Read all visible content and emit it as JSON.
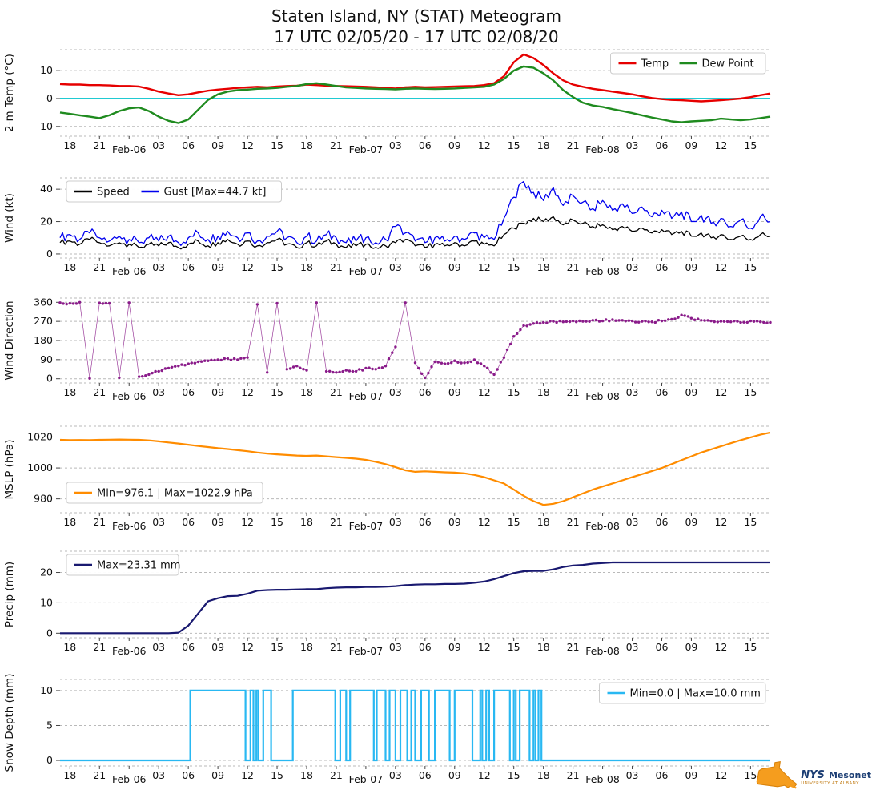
{
  "title_line1": "Staten Island, NY (STAT) Meteogram",
  "title_line2": "17 UTC 02/05/20 - 17 UTC 02/08/20",
  "logo": {
    "nys": "NYS",
    "mesonet": "Mesonet",
    "tagline": "UNIVERSITY AT ALBANY"
  },
  "chart_data": {
    "type": "meteogram-multipanel",
    "x_unit": "hours since 17 UTC 02/05/20",
    "x_range": [
      0,
      72
    ],
    "x_ticks": [
      {
        "h": 1,
        "label": "18"
      },
      {
        "h": 4,
        "label": "21"
      },
      {
        "h": 7,
        "label": "Feb-06",
        "date": true
      },
      {
        "h": 10,
        "label": "03"
      },
      {
        "h": 13,
        "label": "06"
      },
      {
        "h": 16,
        "label": "09"
      },
      {
        "h": 19,
        "label": "12"
      },
      {
        "h": 22,
        "label": "15"
      },
      {
        "h": 25,
        "label": "18"
      },
      {
        "h": 28,
        "label": "21"
      },
      {
        "h": 31,
        "label": "Feb-07",
        "date": true
      },
      {
        "h": 34,
        "label": "03"
      },
      {
        "h": 37,
        "label": "06"
      },
      {
        "h": 40,
        "label": "09"
      },
      {
        "h": 43,
        "label": "12"
      },
      {
        "h": 46,
        "label": "15"
      },
      {
        "h": 49,
        "label": "18"
      },
      {
        "h": 52,
        "label": "21"
      },
      {
        "h": 55,
        "label": "Feb-08",
        "date": true
      },
      {
        "h": 58,
        "label": "03"
      },
      {
        "h": 61,
        "label": "06"
      },
      {
        "h": 64,
        "label": "09"
      },
      {
        "h": 67,
        "label": "12"
      },
      {
        "h": 70,
        "label": "15"
      }
    ],
    "panels": [
      {
        "id": "temp",
        "type": "line",
        "ylabel": "2-m Temp (°C)",
        "ylim": [
          -13.5,
          17.5
        ],
        "yticks": [
          -10,
          0,
          10
        ],
        "zero_line": {
          "value": 0,
          "color": "#00c2cb"
        },
        "legend": {
          "position": "top-right",
          "items": [
            {
              "label": "Temp",
              "color": "#e60000"
            },
            {
              "label": "Dew Point",
              "color": "#1f8b1f"
            }
          ]
        },
        "series": [
          {
            "name": "Temp",
            "color": "#e60000",
            "width": 2.4,
            "values": [
              5.2,
              5.0,
              5.0,
              4.8,
              4.8,
              4.7,
              4.5,
              4.5,
              4.3,
              3.5,
              2.5,
              1.8,
              1.2,
              1.5,
              2.2,
              2.8,
              3.2,
              3.5,
              3.8,
              4.0,
              4.2,
              4.0,
              4.3,
              4.5,
              4.6,
              5.0,
              4.8,
              4.6,
              4.5,
              4.4,
              4.3,
              4.2,
              4.0,
              3.8,
              3.6,
              4.0,
              4.2,
              4.0,
              4.1,
              4.2,
              4.3,
              4.4,
              4.5,
              4.8,
              5.5,
              8.0,
              13.0,
              15.8,
              14.5,
              12.0,
              9.0,
              6.5,
              5.0,
              4.2,
              3.5,
              3.0,
              2.5,
              2.0,
              1.5,
              0.8,
              0.2,
              -0.2,
              -0.5,
              -0.6,
              -0.8,
              -1.0,
              -0.8,
              -0.6,
              -0.3,
              0.0,
              0.5,
              1.2,
              1.8
            ]
          },
          {
            "name": "Dew Point",
            "color": "#1f8b1f",
            "width": 2.4,
            "values": [
              -5.0,
              -5.5,
              -6.0,
              -6.5,
              -7.0,
              -6.0,
              -4.5,
              -3.5,
              -3.2,
              -4.5,
              -6.5,
              -8.0,
              -8.8,
              -7.5,
              -4.0,
              -0.5,
              1.5,
              2.5,
              3.0,
              3.2,
              3.5,
              3.6,
              3.8,
              4.2,
              4.5,
              5.2,
              5.5,
              5.0,
              4.5,
              4.0,
              3.8,
              3.6,
              3.5,
              3.4,
              3.3,
              3.5,
              3.6,
              3.5,
              3.4,
              3.5,
              3.6,
              3.8,
              4.0,
              4.2,
              5.0,
              7.0,
              10.0,
              11.5,
              11.0,
              9.0,
              6.5,
              3.0,
              0.5,
              -1.5,
              -2.5,
              -3.0,
              -3.8,
              -4.5,
              -5.2,
              -6.0,
              -6.8,
              -7.5,
              -8.2,
              -8.5,
              -8.2,
              -8.0,
              -7.8,
              -7.2,
              -7.5,
              -7.8,
              -7.5,
              -7.0,
              -6.5
            ]
          }
        ]
      },
      {
        "id": "wind",
        "type": "line",
        "ylabel": "Wind (kt)",
        "ylim": [
          -2.5,
          47
        ],
        "yticks": [
          0,
          20,
          40
        ],
        "legend": {
          "position": "top-left",
          "items": [
            {
              "label": "Speed",
              "color": "#000000"
            },
            {
              "label": "Gust [Max=44.7 kt]",
              "color": "#0000ee"
            }
          ]
        },
        "series": [
          {
            "name": "Speed",
            "color": "#000000",
            "width": 1.3,
            "jitter": 1.8,
            "values": [
              7,
              8,
              6,
              9,
              7,
              5,
              7,
              6,
              4,
              6,
              5,
              7,
              4,
              6,
              8,
              5,
              7,
              9,
              6,
              8,
              5,
              7,
              9,
              6,
              4,
              7,
              5,
              8,
              6,
              4,
              5,
              6,
              4,
              5,
              7,
              9,
              5,
              4,
              6,
              5,
              7,
              5,
              8,
              6,
              5,
              12,
              16,
              19,
              22,
              20,
              23,
              18,
              21,
              19,
              17,
              18,
              15,
              17,
              14,
              16,
              13,
              15,
              12,
              14,
              11,
              13,
              10,
              12,
              9,
              11,
              9,
              12,
              11
            ]
          },
          {
            "name": "Gust [Max=44.7 kt]",
            "color": "#0000ee",
            "width": 1.3,
            "jitter": 3.2,
            "values": [
              10,
              12,
              9,
              13,
              10,
              8,
              11,
              9,
              7,
              10,
              8,
              11,
              7,
              10,
              13,
              9,
              11,
              14,
              10,
              13,
              8,
              11,
              14,
              10,
              7,
              11,
              8,
              12,
              10,
              7,
              8,
              10,
              7,
              9,
              17,
              13,
              8,
              7,
              10,
              8,
              11,
              9,
              13,
              10,
              9,
              22,
              35,
              44.7,
              38,
              33,
              41,
              30,
              36,
              32,
              28,
              33,
              27,
              31,
              25,
              29,
              23,
              27,
              22,
              26,
              20,
              24,
              19,
              22,
              17,
              21,
              16,
              23,
              20
            ]
          }
        ]
      },
      {
        "id": "wdir",
        "type": "scatter",
        "style": "dots",
        "ylabel": "Wind Direction",
        "ylim": [
          -20,
          380
        ],
        "yticks": [
          0,
          90,
          180,
          270,
          360
        ],
        "series": [
          {
            "name": "Wind Direction",
            "color": "#8a1b8a",
            "width": 0.7,
            "values": [
              358,
              355,
              360,
              2,
              357,
              355,
              5,
              358,
              10,
              20,
              35,
              50,
              60,
              70,
              80,
              85,
              90,
              95,
              90,
              100,
              350,
              30,
              355,
              45,
              60,
              40,
              358,
              35,
              30,
              40,
              35,
              50,
              45,
              60,
              150,
              358,
              75,
              5,
              80,
              70,
              85,
              75,
              90,
              60,
              20,
              100,
              200,
              250,
              260,
              265,
              270,
              268,
              272,
              270,
              275,
              272,
              278,
              275,
              272,
              270,
              268,
              272,
              280,
              300,
              285,
              275,
              272,
              270,
              268,
              265,
              272,
              268,
              265
            ]
          }
        ]
      },
      {
        "id": "mslp",
        "type": "line",
        "ylabel": "MSLP (hPa)",
        "ylim": [
          971,
          1027
        ],
        "yticks": [
          980,
          1000,
          1020
        ],
        "legend": {
          "position": "mid-left",
          "items": [
            {
              "label": "Min=976.1 | Max=1022.9 hPa",
              "color": "#ff8c00"
            }
          ]
        },
        "series": [
          {
            "name": "MSLP",
            "color": "#ff8c00",
            "width": 2.2,
            "values": [
              1018.2,
              1018.0,
              1018.1,
              1018.0,
              1018.2,
              1018.3,
              1018.4,
              1018.3,
              1018.2,
              1017.8,
              1017.2,
              1016.5,
              1015.8,
              1015.0,
              1014.2,
              1013.5,
              1012.8,
              1012.2,
              1011.5,
              1010.8,
              1010.0,
              1009.3,
              1008.8,
              1008.4,
              1008.0,
              1007.8,
              1008.0,
              1007.5,
              1007.0,
              1006.5,
              1006.0,
              1005.2,
              1004.0,
              1002.5,
              1000.5,
              998.5,
              997.5,
              997.8,
              997.5,
              997.2,
              997.0,
              996.5,
              995.5,
              994.0,
              992.0,
              990.0,
              986.0,
              982.0,
              978.5,
              976.1,
              976.8,
              978.5,
              981.0,
              983.5,
              986.0,
              988.0,
              990.0,
              992.0,
              994.0,
              996.0,
              998.0,
              1000.0,
              1002.5,
              1005.0,
              1007.5,
              1010.0,
              1012.0,
              1014.0,
              1016.0,
              1018.0,
              1019.8,
              1021.5,
              1022.9
            ]
          }
        ]
      },
      {
        "id": "precip",
        "type": "line",
        "ylabel": "Precip (mm)",
        "ylim": [
          -1.5,
          27
        ],
        "yticks": [
          0,
          10,
          20
        ],
        "legend": {
          "position": "top-left",
          "items": [
            {
              "label": "Max=23.31 mm",
              "color": "#191970"
            }
          ]
        },
        "series": [
          {
            "name": "Precip",
            "color": "#191970",
            "width": 2.2,
            "values": [
              0,
              0,
              0,
              0,
              0,
              0,
              0,
              0,
              0,
              0,
              0,
              0,
              0.2,
              2.5,
              6.5,
              10.5,
              11.5,
              12.2,
              12.3,
              13.0,
              14.0,
              14.2,
              14.3,
              14.3,
              14.4,
              14.5,
              14.5,
              14.8,
              15.0,
              15.1,
              15.1,
              15.2,
              15.2,
              15.3,
              15.5,
              15.8,
              16.0,
              16.1,
              16.1,
              16.2,
              16.2,
              16.3,
              16.6,
              17.0,
              17.8,
              18.8,
              19.8,
              20.4,
              20.5,
              20.5,
              21.0,
              21.8,
              22.3,
              22.5,
              22.9,
              23.1,
              23.31,
              23.31,
              23.31,
              23.31,
              23.31,
              23.31,
              23.31,
              23.31,
              23.31,
              23.31,
              23.31,
              23.31,
              23.31,
              23.31,
              23.31,
              23.31,
              23.31
            ]
          }
        ]
      },
      {
        "id": "snow",
        "type": "step",
        "ylabel": "Snow Depth (mm)",
        "ylim": [
          -0.8,
          11.6
        ],
        "yticks": [
          0,
          5,
          10
        ],
        "legend": {
          "position": "top-right",
          "items": [
            {
              "label": "Min=0.0 | Max=10.0 mm",
              "color": "#29b8f2"
            }
          ]
        },
        "series": [
          {
            "name": "Snow Depth",
            "color": "#29b8f2",
            "width": 2.2,
            "style": "step-intervals",
            "low": 0,
            "high": 10,
            "intervals": [
              [
                13.2,
                18.8
              ],
              [
                19.3,
                19.6
              ],
              [
                19.9,
                20.1
              ],
              [
                20.6,
                21.4
              ],
              [
                23.6,
                27.9
              ],
              [
                28.4,
                29.0
              ],
              [
                29.4,
                31.8
              ],
              [
                32.1,
                33.0
              ],
              [
                33.4,
                34.0
              ],
              [
                34.5,
                35.2
              ],
              [
                35.6,
                36.0
              ],
              [
                36.6,
                37.4
              ],
              [
                38.0,
                39.5
              ],
              [
                40.0,
                41.8
              ],
              [
                42.6,
                42.8
              ],
              [
                43.2,
                43.5
              ],
              [
                44.0,
                45.6
              ],
              [
                46.0,
                46.2
              ],
              [
                46.6,
                47.6
              ],
              [
                48.0,
                48.2
              ],
              [
                48.5,
                48.8
              ]
            ]
          }
        ]
      }
    ]
  }
}
